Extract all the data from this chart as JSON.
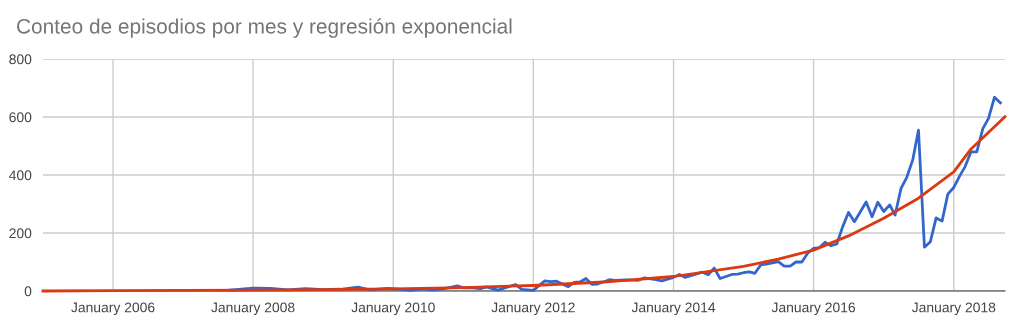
{
  "chart_data": {
    "type": "line",
    "title": "Conteo de episodios por mes y regresión exponencial",
    "xlim": [
      "2005-01-01",
      "2018-09-25"
    ],
    "xticks": [
      {
        "value": "2006-01-01",
        "label": "January 2006"
      },
      {
        "value": "2008-01-01",
        "label": "January 2008"
      },
      {
        "value": "2010-01-01",
        "label": "January 2010"
      },
      {
        "value": "2012-01-01",
        "label": "January 2012"
      },
      {
        "value": "2014-01-01",
        "label": "January 2014"
      },
      {
        "value": "2016-01-01",
        "label": "January 2016"
      },
      {
        "value": "2018-01-01",
        "label": "January 2018"
      }
    ],
    "ylim": [
      0,
      800
    ],
    "yticks": [
      0,
      200,
      400,
      600,
      800
    ],
    "grid": true,
    "marker": "none",
    "line_style": "solid",
    "series": [
      {
        "color": "#3366cc",
        "x": [
          "2007-09",
          "2008-01",
          "2008-04",
          "2008-07",
          "2008-10",
          "2009-01",
          "2009-04",
          "2009-07",
          "2009-09",
          "2009-12",
          "2010-02",
          "2010-04",
          "2010-06",
          "2010-08",
          "2010-10",
          "2010-12",
          "2011-01",
          "2011-02",
          "2011-04",
          "2011-05",
          "2011-07",
          "2011-08",
          "2011-10",
          "2011-11",
          "2012-01",
          "2012-03",
          "2012-04",
          "2012-05",
          "2012-07",
          "2012-08",
          "2012-09",
          "2012-10",
          "2012-11",
          "2012-12",
          "2013-02",
          "2013-03",
          "2013-05",
          "2013-07",
          "2013-08",
          "2013-10",
          "2013-11",
          "2014-01",
          "2014-02",
          "2014-03",
          "2014-04",
          "2014-06",
          "2014-07",
          "2014-08",
          "2014-09",
          "2014-11",
          "2014-12",
          "2015-01",
          "2015-02",
          "2015-03",
          "2015-04",
          "2015-05",
          "2015-07",
          "2015-08",
          "2015-09",
          "2015-10",
          "2015-11",
          "2015-12",
          "2016-01",
          "2016-02",
          "2016-03",
          "2016-04",
          "2016-05",
          "2016-06",
          "2016-07",
          "2016-08",
          "2016-09",
          "2016-10",
          "2016-11",
          "2016-12",
          "2017-01",
          "2017-02",
          "2017-03",
          "2017-04",
          "2017-05",
          "2017-06",
          "2017-07",
          "2017-08",
          "2017-09",
          "2017-10",
          "2017-11",
          "2017-12",
          "2018-01",
          "2018-02",
          "2018-03",
          "2018-04",
          "2018-05",
          "2018-06",
          "2018-07",
          "2018-08",
          "2018-09"
        ],
        "values": [
          3,
          10,
          9,
          4,
          8,
          5,
          6,
          13,
          4,
          9,
          6,
          2,
          7,
          3,
          9,
          18,
          11,
          12,
          8,
          14,
          3,
          10,
          22,
          6,
          2,
          35,
          32,
          34,
          15,
          30,
          31,
          43,
          23,
          24,
          39,
          37,
          38,
          37,
          45,
          39,
          35,
          47,
          57,
          47,
          53,
          65,
          56,
          79,
          43,
          57,
          58,
          63,
          66,
          61,
          90,
          93,
          101,
          86,
          86,
          100,
          100,
          130,
          147,
          150,
          168,
          156,
          162,
          222,
          271,
          239,
          273,
          307,
          256,
          306,
          274,
          297,
          262,
          354,
          392,
          452,
          555,
          151,
          170,
          252,
          241,
          334,
          357,
          397,
          429,
          480,
          480,
          559,
          595,
          668,
          649
        ]
      },
      {
        "color": "#dc3912",
        "x": [
          "2005-01",
          "2006-01",
          "2007-01",
          "2008-01",
          "2009-01",
          "2010-01",
          "2011-01",
          "2012-01",
          "2013-01",
          "2014-01",
          "2015-01",
          "2015-07",
          "2016-01",
          "2016-07",
          "2017-01",
          "2017-07",
          "2018-01",
          "2018-04",
          "2018-09-25"
        ],
        "values": [
          0,
          1,
          2,
          3,
          5,
          7,
          12,
          19,
          31,
          50,
          85,
          110,
          141,
          190,
          251,
          320,
          411,
          490,
          601
        ]
      }
    ]
  }
}
